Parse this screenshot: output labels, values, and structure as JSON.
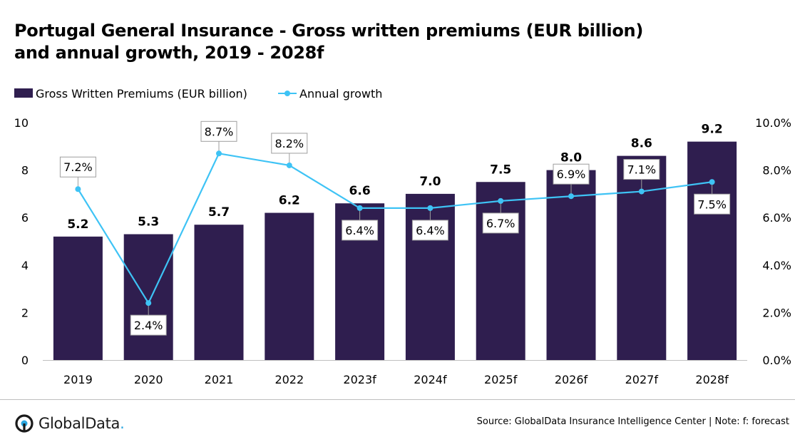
{
  "title": {
    "line1": "Portugal General Insurance - Gross written premiums (EUR billion)",
    "line2": "and annual growth, 2019 - 2028f"
  },
  "footer": {
    "source": "Source: GlobalData Insurance Intelligence Center | Note: f: forecast",
    "logo_text": "GlobalData",
    "logo_dot": "."
  },
  "colors": {
    "bar": "#2f1e4f",
    "line": "#3ec3f5",
    "axis": "#bfbfbf",
    "label_border": "#9e9e9e"
  },
  "chart_data": {
    "type": "bar",
    "categories": [
      "2019",
      "2020",
      "2021",
      "2022",
      "2023f",
      "2024f",
      "2025f",
      "2026f",
      "2027f",
      "2028f"
    ],
    "series": [
      {
        "name": "Gross Written Premiums (EUR billion)",
        "type": "bar",
        "axis": "left",
        "values": [
          5.2,
          5.3,
          5.7,
          6.2,
          6.6,
          7.0,
          7.5,
          8.0,
          8.6,
          9.2
        ],
        "labels": [
          "5.2",
          "5.3",
          "5.7",
          "6.2",
          "6.6",
          "7.0",
          "7.5",
          "8.0",
          "8.6",
          "9.2"
        ]
      },
      {
        "name": "Annual growth",
        "type": "line",
        "axis": "right",
        "values": [
          7.2,
          2.4,
          8.7,
          8.2,
          6.4,
          6.4,
          6.7,
          6.9,
          7.1,
          7.5
        ],
        "labels": [
          "7.2%",
          "2.4%",
          "8.7%",
          "8.2%",
          "6.4%",
          "6.4%",
          "6.7%",
          "6.9%",
          "7.1%",
          "7.5%"
        ],
        "label_position": [
          "above",
          "below",
          "above",
          "above",
          "below",
          "below",
          "below",
          "above",
          "above",
          "below"
        ]
      }
    ],
    "ylim": [
      0,
      10
    ],
    "yticks": [
      "0",
      "2",
      "4",
      "6",
      "8",
      "10"
    ],
    "y2lim": [
      0,
      10
    ],
    "y2ticks": [
      "0.0%",
      "2.0%",
      "4.0%",
      "6.0%",
      "8.0%",
      "10.0%"
    ],
    "legend_position": "top-left",
    "grid": false
  }
}
